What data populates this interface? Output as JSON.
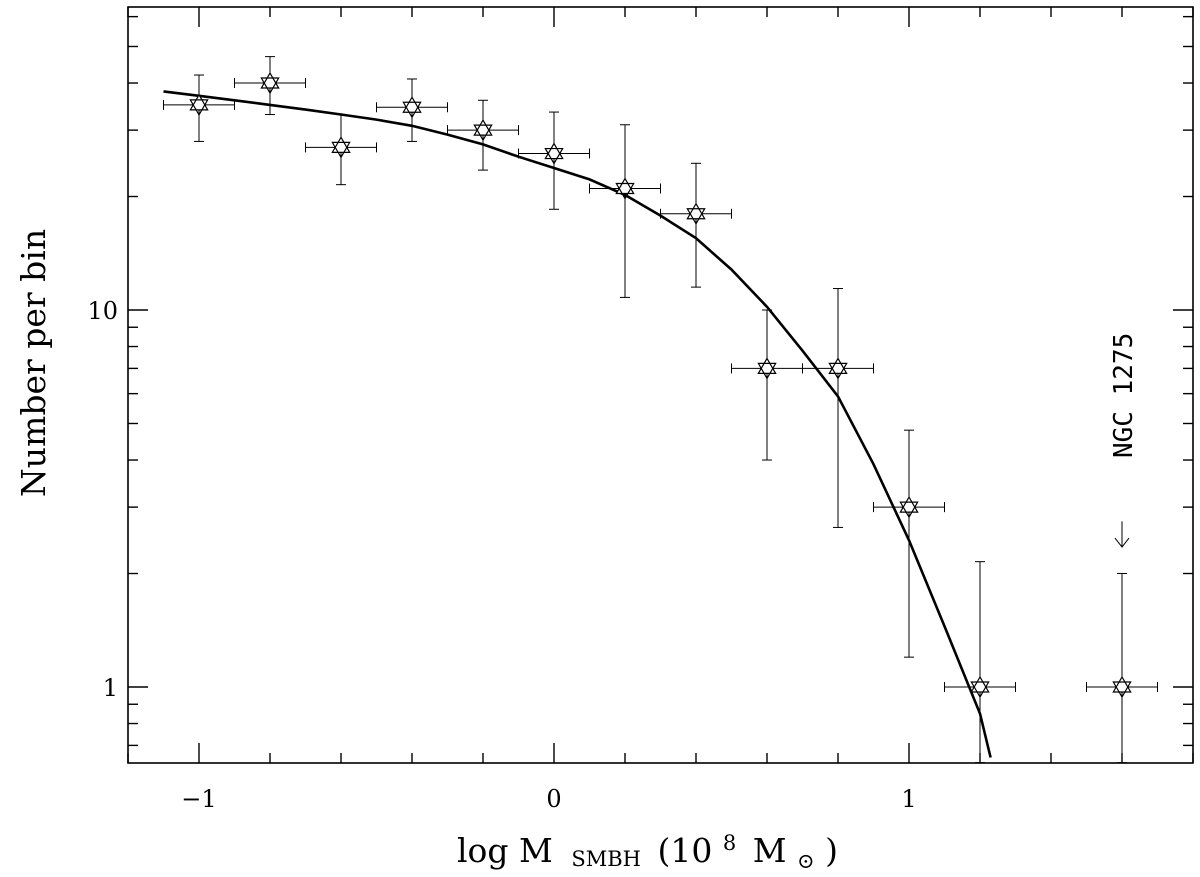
{
  "chart_data": {
    "type": "scatter",
    "xlabel": "log M",
    "xlabel_subscript": "SMBH",
    "xlabel_units_open": "(10",
    "xlabel_units_exp": "8",
    "xlabel_units_mass": "M",
    "xlabel_units_sun": "⊙",
    "xlabel_units_close": ")",
    "ylabel": "Number per bin",
    "y_scale": "log",
    "xlim": [
      -1.2,
      1.8
    ],
    "ylim": [
      0.63,
      52
    ],
    "x_ticks": [
      {
        "value": -1,
        "label": "−1"
      },
      {
        "value": 0,
        "label": "0"
      },
      {
        "value": 1,
        "label": "1"
      }
    ],
    "y_ticks": [
      {
        "value": 1,
        "label": "1"
      },
      {
        "value": 10,
        "label": "10"
      }
    ],
    "points": [
      {
        "x": -1.0,
        "y": 35.0,
        "x_err": 0.1,
        "y_lo": 28.0,
        "y_hi": 42.0
      },
      {
        "x": -0.8,
        "y": 40.0,
        "x_err": 0.1,
        "y_lo": 33.0,
        "y_hi": 47.0
      },
      {
        "x": -0.6,
        "y": 27.0,
        "x_err": 0.1,
        "y_lo": 21.5,
        "y_hi": 33.0
      },
      {
        "x": -0.4,
        "y": 34.5,
        "x_err": 0.1,
        "y_lo": 28.0,
        "y_hi": 41.0
      },
      {
        "x": -0.2,
        "y": 30.0,
        "x_err": 0.1,
        "y_lo": 23.5,
        "y_hi": 36.0
      },
      {
        "x": 0.0,
        "y": 26.0,
        "x_err": 0.1,
        "y_lo": 18.5,
        "y_hi": 33.5
      },
      {
        "x": 0.2,
        "y": 21.0,
        "x_err": 0.1,
        "y_lo": 10.8,
        "y_hi": 31.0
      },
      {
        "x": 0.4,
        "y": 18.0,
        "x_err": 0.1,
        "y_lo": 11.5,
        "y_hi": 24.5
      },
      {
        "x": 0.6,
        "y": 7.0,
        "x_err": 0.1,
        "y_lo": 4.0,
        "y_hi": 10.0
      },
      {
        "x": 0.8,
        "y": 7.0,
        "x_err": 0.1,
        "y_lo": 2.65,
        "y_hi": 11.4
      },
      {
        "x": 1.0,
        "y": 3.0,
        "x_err": 0.1,
        "y_lo": 1.2,
        "y_hi": 4.8
      },
      {
        "x": 1.2,
        "y": 1.0,
        "x_err": 0.1,
        "y_lo": 0.63,
        "y_hi": 2.15
      },
      {
        "x": 1.6,
        "y": 1.0,
        "x_err": 0.1,
        "y_lo": 0.63,
        "y_hi": 2.0
      }
    ],
    "fit_curve": {
      "x": [
        -1.1,
        -1.0,
        -0.9,
        -0.8,
        -0.7,
        -0.6,
        -0.5,
        -0.4,
        -0.3,
        -0.2,
        -0.1,
        0.0,
        0.1,
        0.2,
        0.3,
        0.4,
        0.5,
        0.6,
        0.7,
        0.8,
        0.9,
        1.0,
        1.1,
        1.2,
        1.23
      ],
      "y": [
        38.0,
        37.0,
        36.0,
        35.0,
        34.0,
        33.0,
        32.0,
        30.8,
        29.2,
        27.5,
        25.5,
        23.8,
        22.2,
        20.2,
        17.8,
        15.5,
        12.8,
        10.2,
        7.8,
        5.9,
        3.9,
        2.45,
        1.45,
        0.85,
        0.65
      ]
    },
    "annotation": {
      "text": "NGC 1275",
      "x": 1.6,
      "arrow_y_top": 2.75,
      "arrow_y_bottom": 2.35
    }
  }
}
